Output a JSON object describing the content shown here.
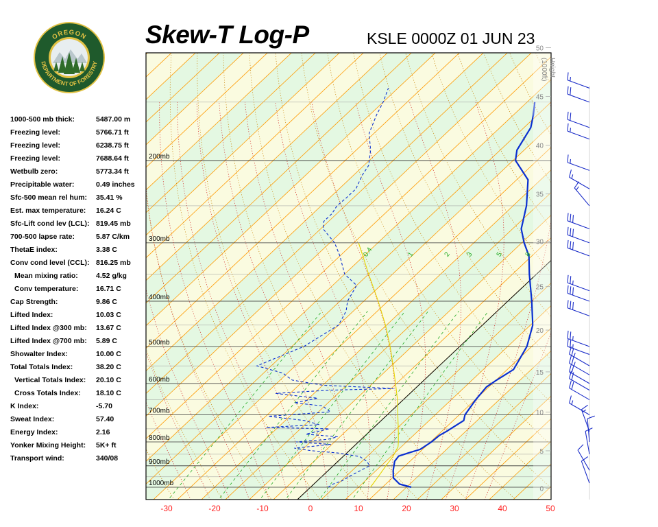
{
  "header": {
    "title": "Skew-T Log-P",
    "station_time": "KSLE 0000Z 01 JUN 23"
  },
  "logo": {
    "top_text": "OREGON",
    "bottom_text": "DEPARTMENT OF FORESTRY",
    "colors": {
      "ring": "#1f5a2c",
      "gold": "#e2c244",
      "sky": "#e8eef0",
      "tree": "#2f6b2a"
    }
  },
  "indices": [
    {
      "label": "1000-500 mb thick:",
      "value": "5487.00 m"
    },
    {
      "label": "Freezing level:",
      "value": "5766.71 ft"
    },
    {
      "label": "Freezing level:",
      "value": "6238.75 ft"
    },
    {
      "label": "Freezing level:",
      "value": "7688.64 ft"
    },
    {
      "label": "Wetbulb zero:",
      "value": "5773.34 ft"
    },
    {
      "label": "Precipitable water:",
      "value": "0.49 inches"
    },
    {
      "label": "Sfc-500 mean rel hum:",
      "value": "35.41 %"
    },
    {
      "label": "Est. max temperature:",
      "value": "16.24 C"
    },
    {
      "label": "Sfc-Lift cond lev (LCL):",
      "value": "819.45 mb"
    },
    {
      "label": "700-500 lapse rate:",
      "value": "5.87 C/km"
    },
    {
      "label": "ThetaE index:",
      "value": "3.38 C"
    },
    {
      "label": "Conv cond level (CCL):",
      "value": "816.25 mb"
    },
    {
      "label": "Mean mixing ratio:",
      "value": "4.52 g/kg",
      "indent": true
    },
    {
      "label": "Conv temperature:",
      "value": "16.71 C",
      "indent": true
    },
    {
      "label": "Cap Strength:",
      "value": "9.86 C"
    },
    {
      "label": "Lifted Index:",
      "value": "10.03 C"
    },
    {
      "label": "Lifted Index @300 mb:",
      "value": "13.67 C"
    },
    {
      "label": "Lifted Index @700 mb:",
      "value": "5.89 C"
    },
    {
      "label": "Showalter Index:",
      "value": "10.00 C"
    },
    {
      "label": "Total Totals Index:",
      "value": "38.20 C"
    },
    {
      "label": "Vertical Totals Index:",
      "value": "20.10 C",
      "indent": true
    },
    {
      "label": "Cross Totals Index:",
      "value": "18.10 C",
      "indent": true
    },
    {
      "label": "K Index:",
      "value": "-5.70"
    },
    {
      "label": "Sweat Index:",
      "value": "57.40"
    },
    {
      "label": "Energy Index:",
      "value": "2.16"
    },
    {
      "label": "Yonker Mixing Height:",
      "value": "5K+ ft"
    },
    {
      "label": "Transport wind:",
      "value": "340/08"
    }
  ],
  "chart_data": {
    "type": "line",
    "title": "Skew-T Log-P",
    "subtitle": "KSLE 0000Z 01 JUN 23",
    "x_tick_labels": [
      "-30",
      "-20",
      "-10",
      "0",
      "10",
      "20",
      "30",
      "40",
      "50"
    ],
    "xlim": [
      -33,
      51
    ],
    "pressure_labels": [
      {
        "p": 1000,
        "label": "1000mb"
      },
      {
        "p": 900,
        "label": "900mb"
      },
      {
        "p": 800,
        "label": "800mb"
      },
      {
        "p": 700,
        "label": "700mb"
      },
      {
        "p": 600,
        "label": "600mb"
      },
      {
        "p": 500,
        "label": "500mb"
      },
      {
        "p": 400,
        "label": "400mb"
      },
      {
        "p": 300,
        "label": "300mb"
      },
      {
        "p": 200,
        "label": "200mb"
      }
    ],
    "height_axis_label": [
      "Height",
      "(1000ft)"
    ],
    "height_ticks": [
      {
        "kft": 0,
        "label": "0"
      },
      {
        "kft": 5,
        "label": "5"
      },
      {
        "kft": 10,
        "label": "10"
      },
      {
        "kft": 15,
        "label": "15"
      },
      {
        "kft": 20,
        "label": "20"
      },
      {
        "kft": 25,
        "label": "25"
      },
      {
        "kft": 30,
        "label": "30"
      },
      {
        "kft": 35,
        "label": "35"
      },
      {
        "kft": 40,
        "label": "40"
      },
      {
        "kft": 45,
        "label": "45"
      },
      {
        "kft": 50,
        "label": "50"
      }
    ],
    "mixing_ratio_labels": [
      "0.4",
      "1",
      "2",
      "3",
      "5",
      "8"
    ],
    "series": [
      {
        "color": "#0a2fd0",
        "style": "solid",
        "points": [
          [
            1000,
            21
          ],
          [
            985,
            17.9
          ],
          [
            955,
            15.2
          ],
          [
            920,
            13.5
          ],
          [
            880,
            11.8
          ],
          [
            858,
            11.5
          ],
          [
            845,
            12.8
          ],
          [
            830,
            14.5
          ],
          [
            800,
            15.2
          ],
          [
            775,
            15.4
          ],
          [
            760,
            16.0
          ],
          [
            720,
            17.2
          ],
          [
            700,
            16.2
          ],
          [
            650,
            15.1
          ],
          [
            610,
            14.5
          ],
          [
            600,
            14.8
          ],
          [
            590,
            15.1
          ],
          [
            560,
            16.3
          ],
          [
            500,
            14.0
          ],
          [
            450,
            10.5
          ],
          [
            400,
            5.0
          ],
          [
            350,
            -1.5
          ],
          [
            320,
            -5.6
          ],
          [
            300,
            -9.5
          ],
          [
            280,
            -13.2
          ],
          [
            250,
            -17.2
          ],
          [
            220,
            -22.6
          ],
          [
            200,
            -29.5
          ],
          [
            190,
            -31.5
          ],
          [
            170,
            -33.6
          ],
          [
            160,
            -35.8
          ],
          [
            150,
            -38.4
          ]
        ]
      },
      {
        "color": "#0a2fd0",
        "style": "dashed",
        "points": [
          [
            1000,
            3.7
          ],
          [
            985,
            4.0
          ],
          [
            970,
            5.1
          ],
          [
            940,
            6.0
          ],
          [
            900,
            7.6
          ],
          [
            880,
            6.0
          ],
          [
            860,
            3.5
          ],
          [
            845,
            -1.8
          ],
          [
            835,
            -8.0
          ],
          [
            825,
            -12.0
          ],
          [
            810,
            -5.2
          ],
          [
            800,
            -13.0
          ],
          [
            790,
            -7.0
          ],
          [
            780,
            -5.5
          ],
          [
            770,
            -12.7
          ],
          [
            750,
            -9.0
          ],
          [
            745,
            -22.5
          ],
          [
            735,
            -12.0
          ],
          [
            720,
            -16.0
          ],
          [
            705,
            -24.5
          ],
          [
            690,
            -12.5
          ],
          [
            670,
            -15.5
          ],
          [
            660,
            -22.0
          ],
          [
            645,
            -18.2
          ],
          [
            630,
            -28.0
          ],
          [
            620,
            -17.5
          ],
          [
            615,
            -4.5
          ],
          [
            605,
            -20.0
          ],
          [
            590,
            -27.5
          ],
          [
            570,
            -31.0
          ],
          [
            550,
            -38.0
          ],
          [
            500,
            -32.5
          ],
          [
            450,
            -30.0
          ],
          [
            420,
            -31.5
          ],
          [
            400,
            -33.4
          ],
          [
            370,
            -35.0
          ],
          [
            350,
            -40.0
          ],
          [
            320,
            -45.0
          ],
          [
            300,
            -49.0
          ],
          [
            280,
            -54.5
          ],
          [
            270,
            -56.0
          ],
          [
            260,
            -56.0
          ],
          [
            250,
            -56.7
          ],
          [
            240,
            -56.5
          ],
          [
            230,
            -56.5
          ],
          [
            215,
            -58.2
          ],
          [
            205,
            -59.0
          ],
          [
            190,
            -62.0
          ],
          [
            175,
            -66.0
          ],
          [
            160,
            -68.5
          ],
          [
            150,
            -70.0
          ],
          [
            140,
            -72.0
          ]
        ]
      },
      {
        "color": "#e6d400",
        "style": "solid",
        "points": [
          [
            1000,
            12.5
          ],
          [
            950,
            11.8
          ],
          [
            900,
            11.0
          ],
          [
            860,
            10.4
          ],
          [
            819,
            9.3
          ],
          [
            800,
            8.3
          ],
          [
            760,
            6.0
          ],
          [
            700,
            2.2
          ],
          [
            650,
            -1.2
          ],
          [
            600,
            -5.2
          ],
          [
            550,
            -9.6
          ],
          [
            500,
            -14.5
          ],
          [
            450,
            -20.2
          ],
          [
            400,
            -27.0
          ],
          [
            350,
            -35.0
          ],
          [
            300,
            -44.0
          ]
        ]
      }
    ],
    "wind_barbs": [
      {
        "p": 980,
        "dir": 340,
        "speed": 10
      },
      {
        "p": 920,
        "dir": 330,
        "speed": 10
      },
      {
        "p": 850,
        "dir": 350,
        "speed": 10
      },
      {
        "p": 800,
        "dir": 355,
        "speed": 10
      },
      {
        "p": 760,
        "dir": 340,
        "speed": 15
      },
      {
        "p": 700,
        "dir": 300,
        "speed": 15
      },
      {
        "p": 650,
        "dir": 300,
        "speed": 20
      },
      {
        "p": 620,
        "dir": 300,
        "speed": 20
      },
      {
        "p": 600,
        "dir": 300,
        "speed": 20
      },
      {
        "p": 575,
        "dir": 300,
        "speed": 25
      },
      {
        "p": 550,
        "dir": 300,
        "speed": 25
      },
      {
        "p": 520,
        "dir": 290,
        "speed": 25
      },
      {
        "p": 500,
        "dir": 290,
        "speed": 25
      },
      {
        "p": 430,
        "dir": 290,
        "speed": 30
      },
      {
        "p": 400,
        "dir": 290,
        "speed": 30
      },
      {
        "p": 380,
        "dir": 290,
        "speed": 25
      },
      {
        "p": 320,
        "dir": 290,
        "speed": 30
      },
      {
        "p": 300,
        "dir": 290,
        "speed": 30
      },
      {
        "p": 280,
        "dir": 290,
        "speed": 30
      },
      {
        "p": 250,
        "dir": 320,
        "speed": 15
      },
      {
        "p": 230,
        "dir": 300,
        "speed": 15
      },
      {
        "p": 210,
        "dir": 290,
        "speed": 15
      },
      {
        "p": 180,
        "dir": 290,
        "speed": 15
      },
      {
        "p": 170,
        "dir": 290,
        "speed": 20
      },
      {
        "p": 150,
        "dir": 290,
        "speed": 20
      },
      {
        "p": 140,
        "dir": 290,
        "speed": 15
      }
    ],
    "colors": {
      "background": "#fafbe0",
      "green_band": "#e4f8e2",
      "isotherm": "#ff9a00",
      "dry_adiabat": "#c88000",
      "moist_adiabat": "#d02020",
      "mixing_ratio": "#22aa22",
      "temperature": "#0a2fd0",
      "dewpoint": "#0a2fd0",
      "parcel": "#e6d400",
      "freezing_line": "#000000",
      "tick_text": "#ff2020"
    },
    "grid": true
  }
}
